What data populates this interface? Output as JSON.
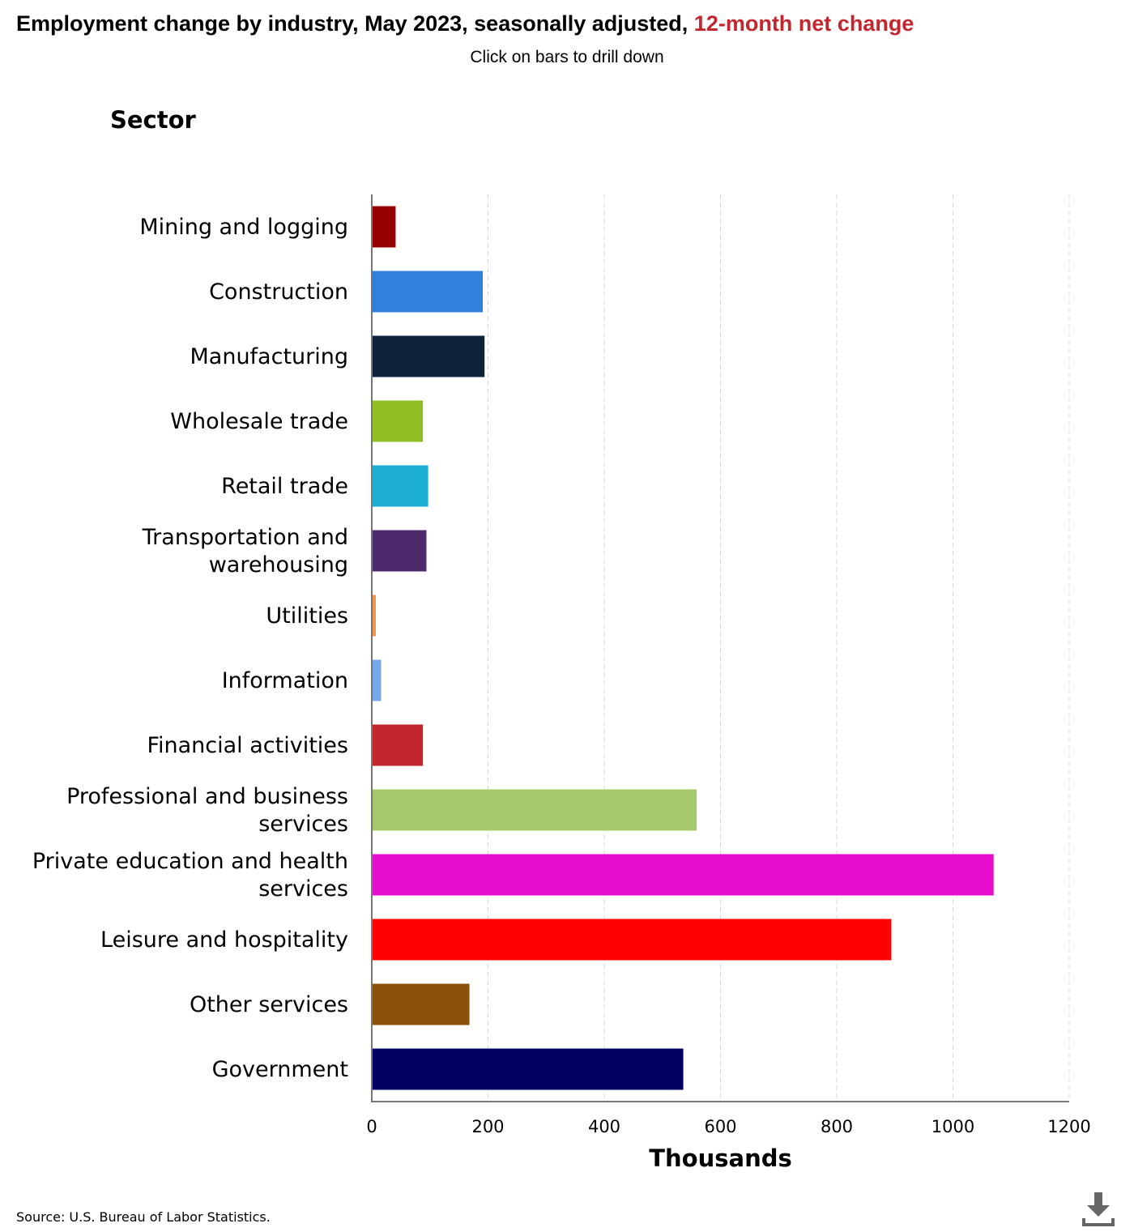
{
  "header": {
    "title_main": "Employment change by industry, May 2023, seasonally adjusted,",
    "title_highlight": "12-month net change",
    "subtitle": "Click on bars to drill down"
  },
  "footer": {
    "source": "Source: U.S. Bureau of Labor Statistics."
  },
  "icons": {
    "download": "download-icon"
  },
  "chart_data": {
    "type": "bar",
    "orientation": "horizontal",
    "title": "Employment change by industry, May 2023, seasonally adjusted, 12-month net change",
    "subtitle": "Click on bars to drill down",
    "ylabel": "Sector",
    "xlabel": "Thousands",
    "xlim": [
      0,
      1200
    ],
    "x_ticks": [
      0,
      200,
      400,
      600,
      800,
      1000,
      1200
    ],
    "grid": true,
    "legend": "none",
    "categories": [
      [
        "Mining and logging"
      ],
      [
        "Construction"
      ],
      [
        "Manufacturing"
      ],
      [
        "Wholesale trade"
      ],
      [
        "Retail trade"
      ],
      [
        "Transportation and",
        "warehousing"
      ],
      [
        "Utilities"
      ],
      [
        "Information"
      ],
      [
        "Financial activities"
      ],
      [
        "Professional and business",
        "services"
      ],
      [
        "Private education and health",
        "services"
      ],
      [
        "Leisure and hospitality"
      ],
      [
        "Other services"
      ],
      [
        "Government"
      ]
    ],
    "values": [
      41,
      191,
      194,
      88,
      97,
      94,
      7,
      16,
      88,
      559,
      1070,
      894,
      168,
      536
    ],
    "colors": [
      "#960000",
      "#3180dd",
      "#0e233c",
      "#8fbd24",
      "#1caed1",
      "#4c2a6c",
      "#f0954a",
      "#77a8ec",
      "#c4262e",
      "#a7cb6c",
      "#e60dcc",
      "#ff0000",
      "#8c5108",
      "#000060"
    ]
  }
}
